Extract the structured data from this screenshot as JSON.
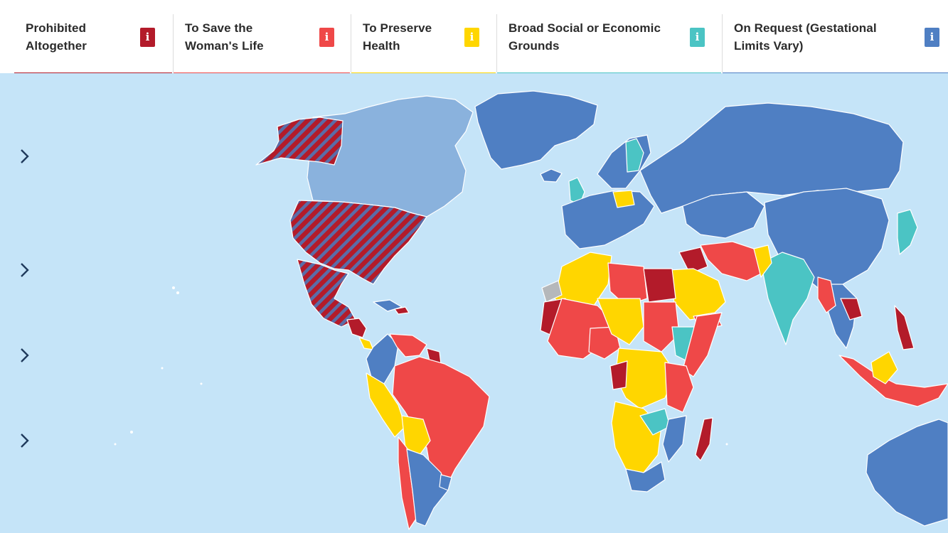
{
  "legend": {
    "categories": [
      {
        "key": "prohibited",
        "label": "Prohibited\nAltogether",
        "color": "#b31b2a"
      },
      {
        "key": "save_life",
        "label": "To Save the\nWoman's Life",
        "color": "#ef4848"
      },
      {
        "key": "preserve_health",
        "label": "To Preserve\nHealth",
        "color": "#ffd600"
      },
      {
        "key": "socioeconomic",
        "label": "Broad Social or Economic\nGrounds",
        "color": "#4bc4c4"
      },
      {
        "key": "on_request",
        "label": "On Request (Gestational\nLimits Vary)",
        "color": "#4f7fc3"
      }
    ],
    "info_glyph": "i",
    "info_icon": "info-icon"
  },
  "map": {
    "ocean_color": "#c5e4f8",
    "border_color": "#ffffff",
    "pattern_color": "#5a6da8",
    "no_data_color": "#b5b8bb",
    "light_region_color": "#8ab2dd",
    "nav_icon": "chevron-right-icon"
  }
}
